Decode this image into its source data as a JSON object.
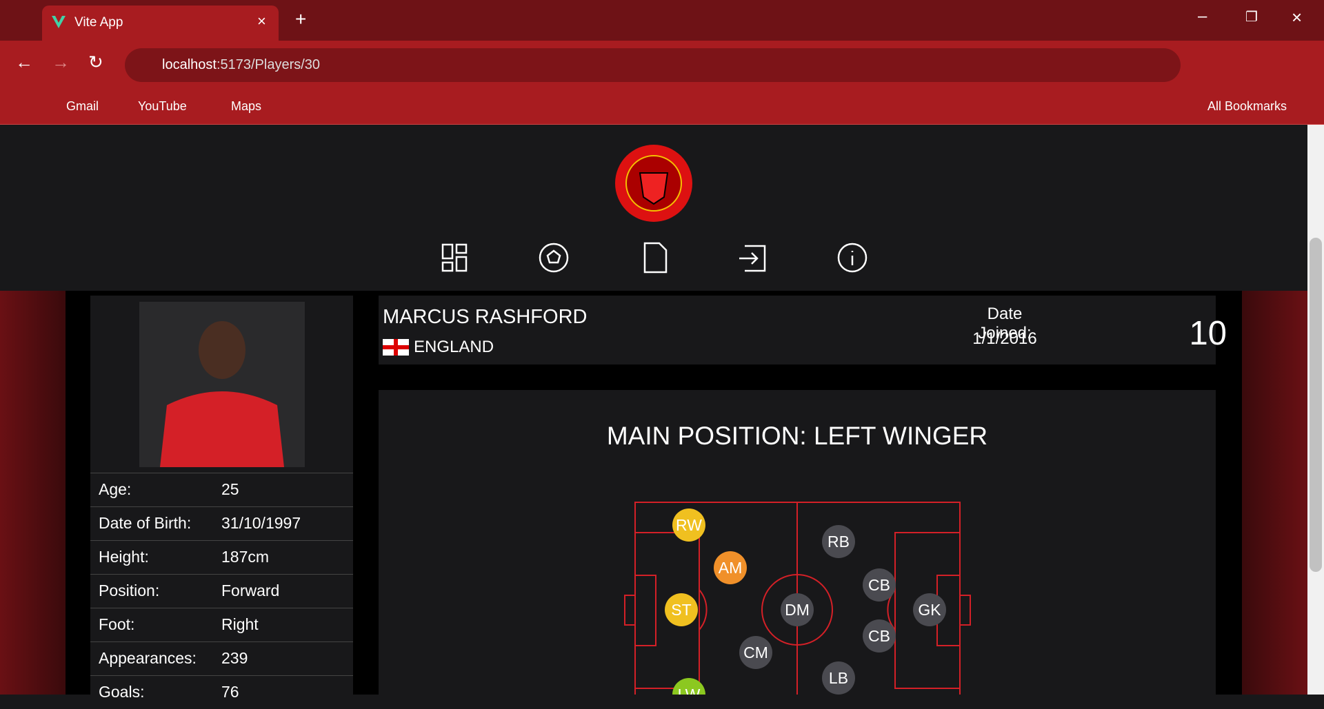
{
  "browser": {
    "tab_title": "Vite App",
    "url_host": "localhost",
    "url_path": ":5173/Players/30",
    "bookmarks": [
      "Gmail",
      "YouTube",
      "Maps"
    ],
    "all_bookmarks": "All Bookmarks"
  },
  "player": {
    "name": "MARCUS RASHFORD",
    "country": "ENGLAND",
    "date_joined_label": "Date Joined:",
    "date_joined": "1/1/2016",
    "number": "10",
    "stats": [
      [
        "Age:",
        "25"
      ],
      [
        "Date of Birth:",
        "31/10/1997"
      ],
      [
        "Height:",
        "187cm"
      ],
      [
        "Position:",
        "Forward"
      ],
      [
        "Foot:",
        "Right"
      ],
      [
        "Appearances:",
        "239"
      ],
      [
        "Goals:",
        "76"
      ]
    ]
  },
  "positions": {
    "title": "MAIN POSITION: LEFT WINGER",
    "nodes": [
      "RW",
      "AM",
      "ST",
      "LW",
      "CM",
      "DM",
      "RB",
      "CB",
      "CB",
      "LB",
      "GK"
    ]
  }
}
